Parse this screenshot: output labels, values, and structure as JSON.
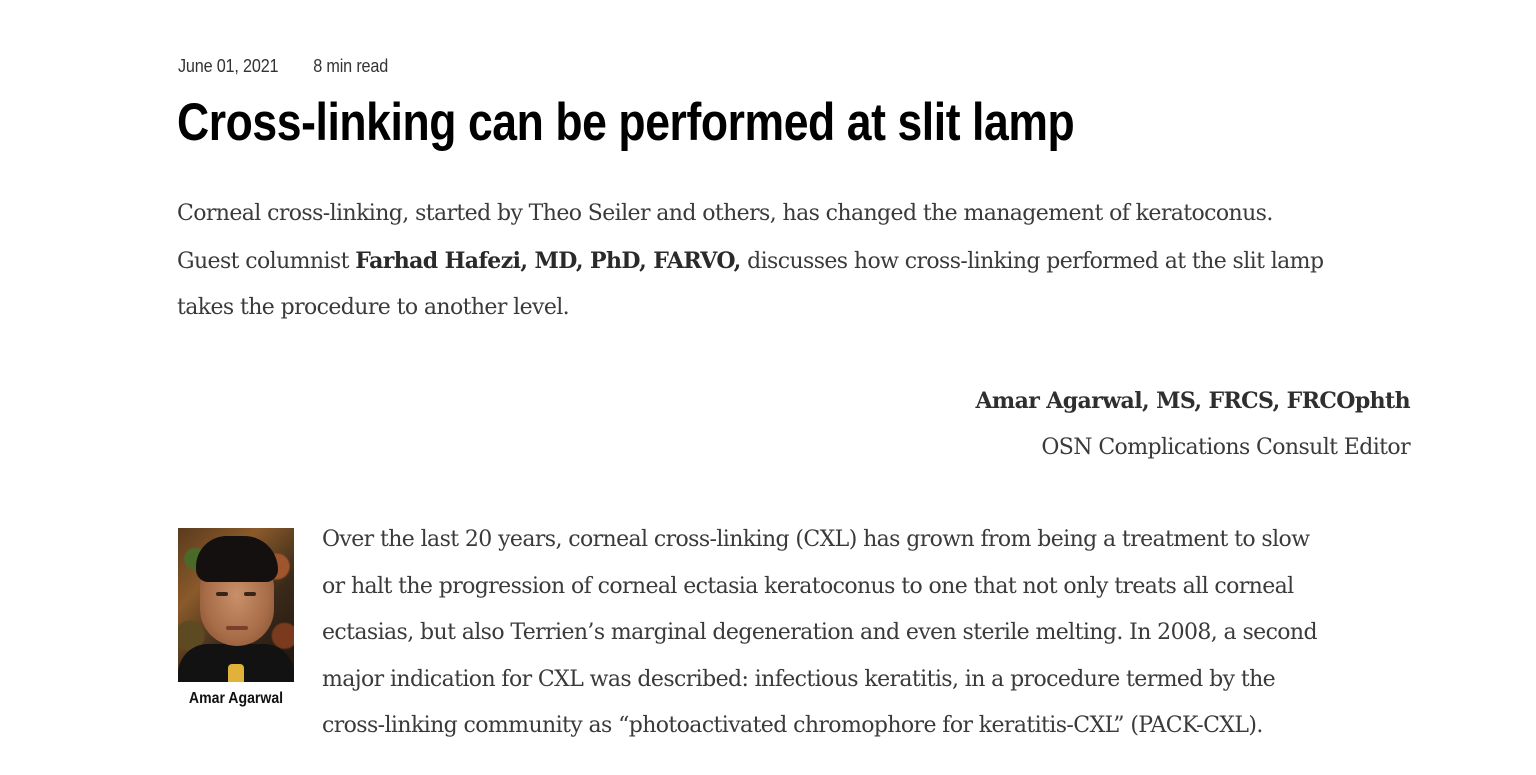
{
  "article": {
    "date": "June 01, 2021",
    "read_time": "8 min read",
    "title": "Cross-linking can be performed at slit lamp",
    "intro": {
      "line1": "Corneal cross-linking, started by Theo Seiler and others, has changed the management of keratoconus.",
      "line2_before": "Guest columnist ",
      "line2_bold": "Farhad Hafezi, MD, PhD, FARVO,",
      "line2_after": " discusses how cross-linking performed at the slit lamp",
      "line3": "takes the procedure to another level."
    },
    "byline": {
      "name": "Amar Agarwal, MS, FRCS, FRCOphth",
      "role": "OSN Complications Consult Editor"
    },
    "author_photo": {
      "caption": "Amar Agarwal",
      "icon": "author-portrait"
    },
    "body": {
      "lines": [
        "Over the last 20 years, corneal cross-linking (CXL) has grown from being a treatment to slow",
        "or halt the progression of corneal ectasia keratoconus to one that not only treats all corneal",
        "ectasias, but also Terrien’s marginal degeneration and even sterile melting. In 2008, a second",
        "major indication for CXL was described: infectious keratitis, in a procedure termed by the",
        "cross-linking community as “photoactivated chromophore for keratitis-CXL” (PACK-CXL)."
      ]
    }
  }
}
